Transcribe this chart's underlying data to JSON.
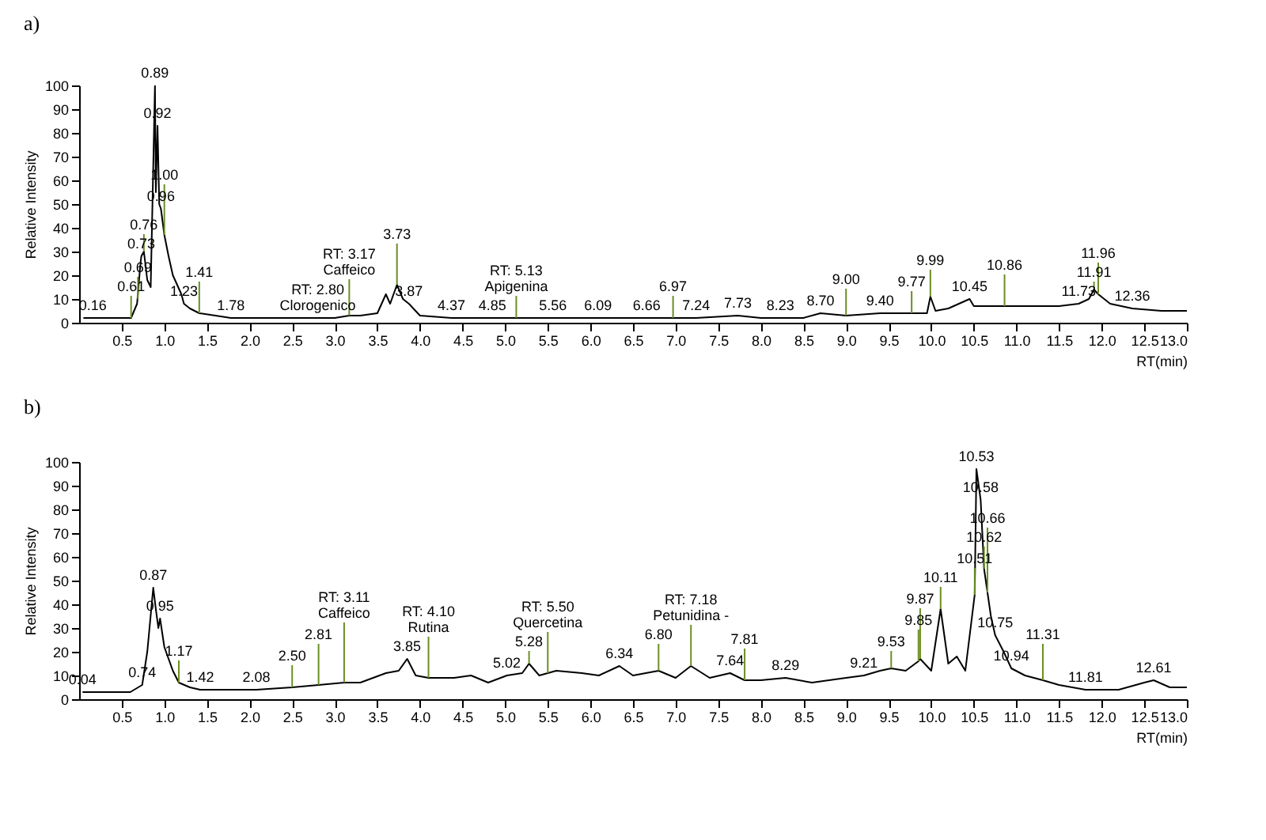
{
  "chart_data": [
    {
      "type": "line",
      "title": "a)",
      "xlabel": "RT(min)",
      "ylabel": "Relative Intensity",
      "xlim": [
        0,
        13
      ],
      "ylim": [
        0,
        100
      ],
      "xticks": [
        0.5,
        {
          "value": 1,
          "label": "1.0"
        },
        1.5,
        {
          "value": 2,
          "label": "2.0"
        },
        2.5,
        {
          "value": 3,
          "label": "3.0"
        },
        3.5,
        {
          "value": 4,
          "label": "4.0"
        },
        4.5,
        {
          "value": 5,
          "label": "5.0"
        },
        5.5,
        {
          "value": 6,
          "label": "6.0"
        },
        6.5,
        {
          "value": 7,
          "label": "7.0"
        },
        7.5,
        {
          "value": 8,
          "label": "8.0"
        },
        8.5,
        {
          "value": 9,
          "label": "9.0"
        },
        9.5,
        {
          "value": 10,
          "label": "10.0"
        },
        10.5,
        {
          "value": 11,
          "label": "11.0"
        },
        11.5,
        {
          "value": 12,
          "label": "12.0"
        },
        12.5,
        {
          "value": 13,
          "label": "13.0"
        }
      ],
      "yticks": [
        0,
        10,
        20,
        30,
        40,
        50,
        60,
        70,
        80,
        90,
        100
      ],
      "series": [
        {
          "color": "#000000",
          "x": [
            0.05,
            0.16,
            0.4,
            0.61,
            0.68,
            0.72,
            0.73,
            0.76,
            0.8,
            0.84,
            0.89,
            0.9,
            0.92,
            0.94,
            0.96,
            1.0,
            1.05,
            1.1,
            1.2,
            1.23,
            1.3,
            1.41,
            1.6,
            1.78,
            2.0,
            2.5,
            2.8,
            3.0,
            3.17,
            3.3,
            3.5,
            3.6,
            3.65,
            3.73,
            3.8,
            3.87,
            4.0,
            4.37,
            4.85,
            5.13,
            5.56,
            6.09,
            6.66,
            6.97,
            7.24,
            7.73,
            8.0,
            8.23,
            8.5,
            8.7,
            9.0,
            9.4,
            9.77,
            9.95,
            9.99,
            10.05,
            10.2,
            10.45,
            10.5,
            10.86,
            11.2,
            11.5,
            11.73,
            11.85,
            11.91,
            11.96,
            12.1,
            12.36,
            12.7,
            13.0
          ],
          "values": [
            2,
            2,
            2,
            2,
            8,
            25,
            28,
            30,
            18,
            15,
            100,
            55,
            83,
            50,
            48,
            37,
            28,
            20,
            12,
            8,
            6,
            4,
            3,
            2,
            2,
            2,
            2,
            2,
            3,
            3,
            4,
            12,
            8,
            16,
            10,
            8,
            3,
            2,
            2,
            2,
            2,
            2,
            2,
            2,
            2,
            3,
            2,
            2,
            2,
            4,
            3,
            4,
            4,
            4,
            11,
            5,
            6,
            10,
            7,
            7,
            7,
            7,
            8,
            10,
            14,
            12,
            8,
            6,
            5,
            5
          ]
        }
      ],
      "annotations": [
        {
          "text": "0.16",
          "x": 0.16,
          "y": 2
        },
        {
          "text": "0.61",
          "x": 0.61,
          "y": 2
        },
        {
          "text": "0.69",
          "x": 0.69,
          "y": 10
        },
        {
          "text": "0.73",
          "x": 0.73,
          "y": 28
        },
        {
          "text": "0.76",
          "x": 0.76,
          "y": 30
        },
        {
          "text": "0.89",
          "x": 0.89,
          "y": 100
        },
        {
          "text": "0.92",
          "x": 0.92,
          "y": 83
        },
        {
          "text": "0.96",
          "x": 0.96,
          "y": 48
        },
        {
          "text": "1.00",
          "x": 1.0,
          "y": 37
        },
        {
          "text": "1.23",
          "x": 1.23,
          "y": 8
        },
        {
          "text": "1.41",
          "x": 1.41,
          "y": 4
        },
        {
          "text": "1.78",
          "x": 1.78,
          "y": 2
        },
        {
          "text": "RT: 2.80\nClorogenico",
          "x": 2.8,
          "y": 2
        },
        {
          "text": "RT: 3.17\nCaffeico",
          "x": 3.17,
          "y": 3
        },
        {
          "text": "3.73",
          "x": 3.73,
          "y": 16
        },
        {
          "text": "3.87",
          "x": 3.87,
          "y": 8
        },
        {
          "text": "4.37",
          "x": 4.37,
          "y": 2
        },
        {
          "text": "4.85",
          "x": 4.85,
          "y": 2
        },
        {
          "text": "RT: 5.13\nApigenina",
          "x": 5.13,
          "y": 2
        },
        {
          "text": "5.56",
          "x": 5.56,
          "y": 2
        },
        {
          "text": "6.09",
          "x": 6.09,
          "y": 2
        },
        {
          "text": "6.66",
          "x": 6.66,
          "y": 2
        },
        {
          "text": "6.97",
          "x": 6.97,
          "y": 2
        },
        {
          "text": "7.24",
          "x": 7.24,
          "y": 2
        },
        {
          "text": "7.73",
          "x": 7.73,
          "y": 3
        },
        {
          "text": "8.23",
          "x": 8.23,
          "y": 2
        },
        {
          "text": "8.70",
          "x": 8.7,
          "y": 4
        },
        {
          "text": "9.00",
          "x": 9.0,
          "y": 3
        },
        {
          "text": "9.40",
          "x": 9.4,
          "y": 4
        },
        {
          "text": "9.77",
          "x": 9.77,
          "y": 4
        },
        {
          "text": "9.99",
          "x": 9.99,
          "y": 11
        },
        {
          "text": "10.45",
          "x": 10.45,
          "y": 10
        },
        {
          "text": "10.86",
          "x": 10.86,
          "y": 7
        },
        {
          "text": "11.73",
          "x": 11.73,
          "y": 8
        },
        {
          "text": "11.91",
          "x": 11.91,
          "y": 14
        },
        {
          "text": "11.96",
          "x": 11.96,
          "y": 12
        },
        {
          "text": "12.36",
          "x": 12.36,
          "y": 6
        }
      ]
    },
    {
      "type": "line",
      "title": "b)",
      "xlabel": "RT(min)",
      "ylabel": "Relative Intensity",
      "xlim": [
        0,
        13
      ],
      "ylim": [
        0,
        100
      ],
      "xticks": [
        0.5,
        {
          "value": 1,
          "label": "1.0"
        },
        1.5,
        {
          "value": 2,
          "label": "2.0"
        },
        2.5,
        {
          "value": 3,
          "label": "3.0"
        },
        3.5,
        {
          "value": 4,
          "label": "4.0"
        },
        4.5,
        {
          "value": 5,
          "label": "5.0"
        },
        5.5,
        {
          "value": 6,
          "label": "6.0"
        },
        6.5,
        {
          "value": 7,
          "label": "7.0"
        },
        7.5,
        {
          "value": 8,
          "label": "8.0"
        },
        8.5,
        {
          "value": 9,
          "label": "9.0"
        },
        9.5,
        {
          "value": 10,
          "label": "10.0"
        },
        10.5,
        {
          "value": 11,
          "label": "11.0"
        },
        11.5,
        {
          "value": 12,
          "label": "12.0"
        },
        12.5,
        {
          "value": 13,
          "label": "13.0"
        }
      ],
      "yticks": [
        0,
        10,
        20,
        30,
        40,
        50,
        60,
        70,
        80,
        90,
        100
      ],
      "series": [
        {
          "color": "#000000",
          "x": [
            0.04,
            0.3,
            0.6,
            0.74,
            0.8,
            0.87,
            0.9,
            0.93,
            0.95,
            1.0,
            1.1,
            1.17,
            1.3,
            1.42,
            1.7,
            2.08,
            2.5,
            2.81,
            3.11,
            3.3,
            3.6,
            3.75,
            3.85,
            3.95,
            4.1,
            4.4,
            4.6,
            4.8,
            5.02,
            5.2,
            5.28,
            5.4,
            5.5,
            5.6,
            5.9,
            6.1,
            6.34,
            6.5,
            6.8,
            7.0,
            7.18,
            7.4,
            7.64,
            7.81,
            8.0,
            8.29,
            8.6,
            9.0,
            9.21,
            9.4,
            9.53,
            9.7,
            9.85,
            9.87,
            10.0,
            10.11,
            10.2,
            10.3,
            10.4,
            10.51,
            10.53,
            10.58,
            10.62,
            10.66,
            10.7,
            10.75,
            10.85,
            10.94,
            11.1,
            11.31,
            11.5,
            11.81,
            12.2,
            12.5,
            12.61,
            12.8,
            13.0
          ],
          "values": [
            3,
            3,
            3,
            6,
            20,
            47,
            38,
            30,
            34,
            22,
            12,
            7,
            5,
            4,
            4,
            4,
            5,
            6,
            7,
            7,
            11,
            12,
            17,
            10,
            9,
            9,
            10,
            7,
            10,
            11,
            15,
            10,
            11,
            12,
            11,
            10,
            14,
            10,
            12,
            9,
            14,
            9,
            11,
            8,
            8,
            9,
            7,
            9,
            10,
            12,
            13,
            12,
            16,
            17,
            12,
            38,
            15,
            18,
            12,
            44,
            97,
            84,
            55,
            45,
            35,
            27,
            20,
            13,
            10,
            8,
            6,
            4,
            4,
            7,
            8,
            5,
            5
          ]
        }
      ],
      "annotations": [
        {
          "text": "0.04",
          "x": 0.04,
          "y": 3
        },
        {
          "text": "0.74",
          "x": 0.74,
          "y": 6
        },
        {
          "text": "0.87",
          "x": 0.87,
          "y": 47
        },
        {
          "text": "0.95",
          "x": 0.95,
          "y": 34
        },
        {
          "text": "1.17",
          "x": 1.17,
          "y": 7
        },
        {
          "text": "1.42",
          "x": 1.42,
          "y": 4
        },
        {
          "text": "2.08",
          "x": 2.08,
          "y": 4
        },
        {
          "text": "2.50",
          "x": 2.5,
          "y": 5
        },
        {
          "text": "2.81",
          "x": 2.81,
          "y": 6
        },
        {
          "text": "RT: 3.11\nCaffeico",
          "x": 3.11,
          "y": 7
        },
        {
          "text": "3.85",
          "x": 3.85,
          "y": 17
        },
        {
          "text": "RT: 4.10\nRutina",
          "x": 4.1,
          "y": 9
        },
        {
          "text": "5.02",
          "x": 5.02,
          "y": 10
        },
        {
          "text": "5.28",
          "x": 5.28,
          "y": 15
        },
        {
          "text": "RT: 5.50\nQuercetina",
          "x": 5.5,
          "y": 11
        },
        {
          "text": "6.34",
          "x": 6.34,
          "y": 14
        },
        {
          "text": "6.80",
          "x": 6.8,
          "y": 12
        },
        {
          "text": "RT: 7.18\nPetunidina -",
          "x": 7.18,
          "y": 14
        },
        {
          "text": "7.64",
          "x": 7.64,
          "y": 11
        },
        {
          "text": "7.81",
          "x": 7.81,
          "y": 8
        },
        {
          "text": "8.29",
          "x": 8.29,
          "y": 9
        },
        {
          "text": "9.21",
          "x": 9.21,
          "y": 10
        },
        {
          "text": "9.53",
          "x": 9.53,
          "y": 13
        },
        {
          "text": "9.85",
          "x": 9.85,
          "y": 16
        },
        {
          "text": "9.87",
          "x": 9.87,
          "y": 17
        },
        {
          "text": "10.11",
          "x": 10.11,
          "y": 38
        },
        {
          "text": "10.51",
          "x": 10.51,
          "y": 44
        },
        {
          "text": "10.53",
          "x": 10.53,
          "y": 97
        },
        {
          "text": "10.58",
          "x": 10.58,
          "y": 84
        },
        {
          "text": "10.62",
          "x": 10.62,
          "y": 55
        },
        {
          "text": "10.66",
          "x": 10.66,
          "y": 45
        },
        {
          "text": "10.75",
          "x": 10.75,
          "y": 27
        },
        {
          "text": "10.94",
          "x": 10.94,
          "y": 13
        },
        {
          "text": "11.31",
          "x": 11.31,
          "y": 8
        },
        {
          "text": "11.81",
          "x": 11.81,
          "y": 4
        },
        {
          "text": "12.61",
          "x": 12.61,
          "y": 8
        }
      ]
    }
  ]
}
